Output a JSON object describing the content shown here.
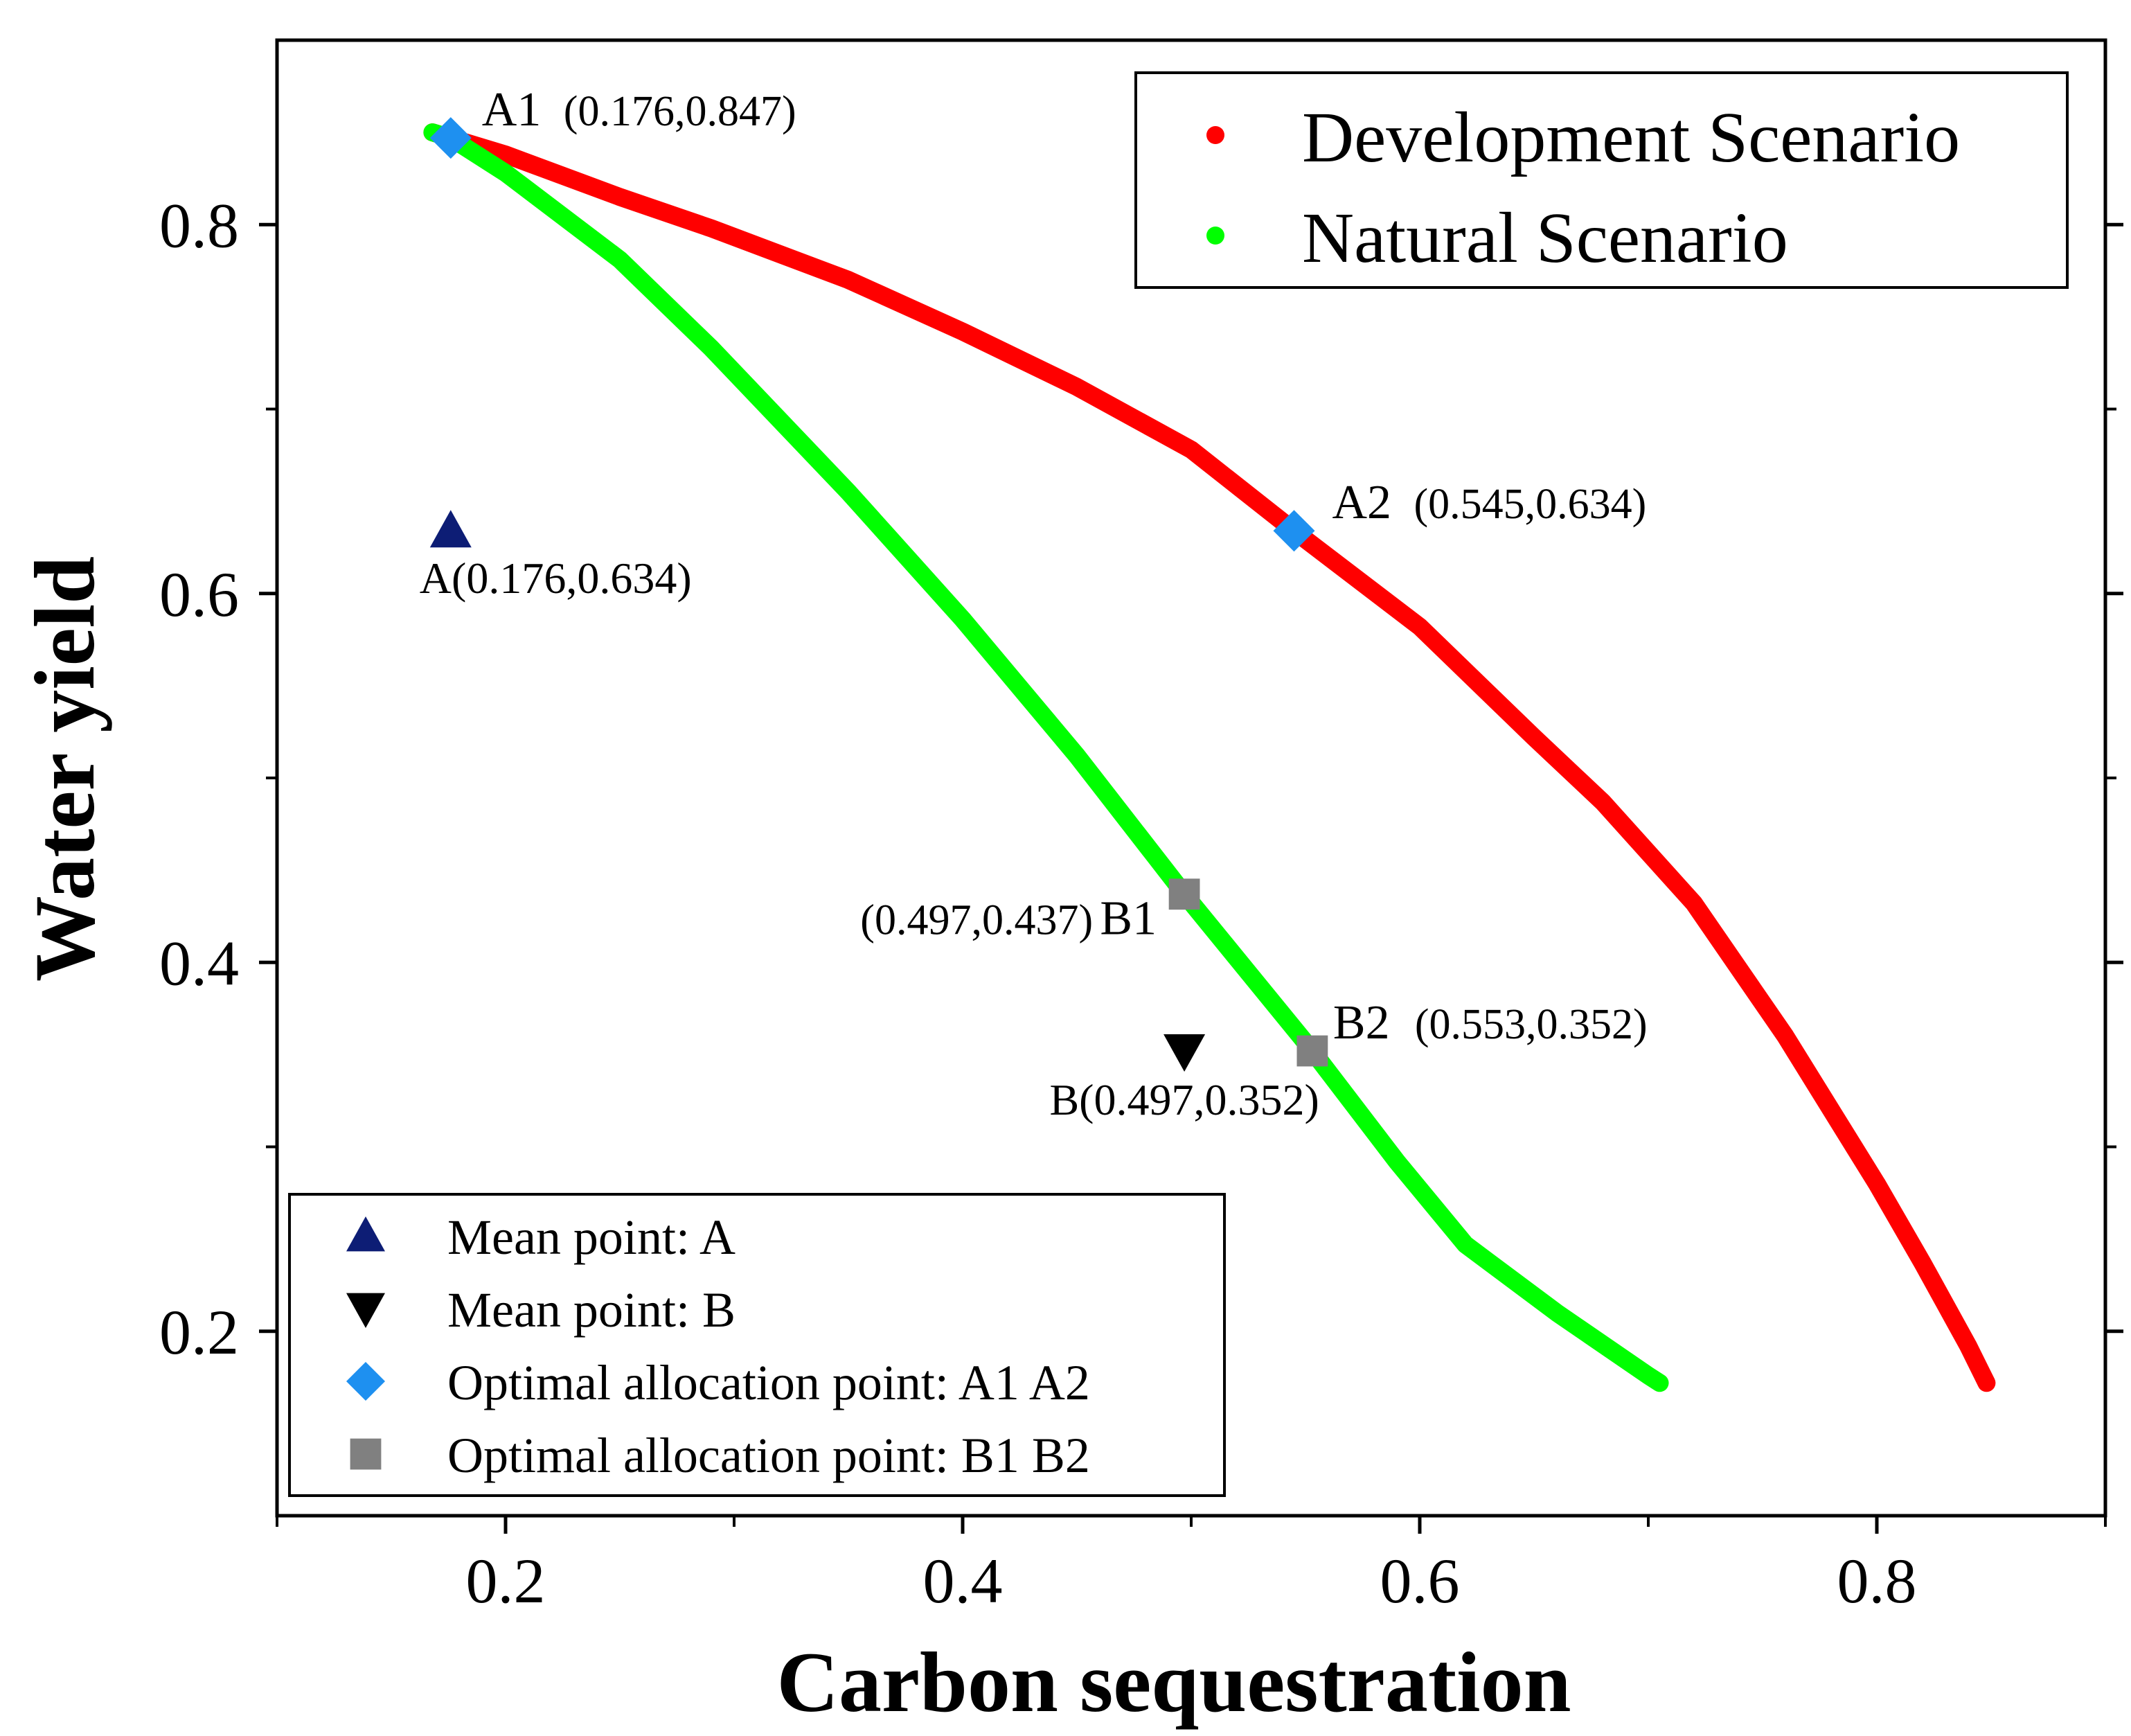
{
  "chart_data": {
    "type": "line",
    "title": "",
    "xlabel": "Carbon sequestration",
    "ylabel": "Water yield",
    "xlim": [
      0.1,
      0.9
    ],
    "ylim": [
      0.1,
      0.9
    ],
    "xticks": [
      0.2,
      0.4,
      0.6,
      0.8
    ],
    "yticks": [
      0.2,
      0.4,
      0.6,
      0.8
    ],
    "xtick_labels": [
      "0.2",
      "0.4",
      "0.6",
      "0.8"
    ],
    "ytick_labels": [
      "0.2",
      "0.4",
      "0.6",
      "0.8"
    ],
    "series": [
      {
        "name": "Development Scenario",
        "color": "#ff0000",
        "x": [
          0.168,
          0.176,
          0.2,
          0.25,
          0.29,
          0.35,
          0.4,
          0.45,
          0.5,
          0.545,
          0.6,
          0.65,
          0.68,
          0.72,
          0.76,
          0.8,
          0.82,
          0.84,
          0.846,
          0.848
        ],
        "y": [
          0.85,
          0.847,
          0.838,
          0.815,
          0.798,
          0.77,
          0.742,
          0.712,
          0.678,
          0.634,
          0.582,
          0.522,
          0.487,
          0.432,
          0.36,
          0.28,
          0.237,
          0.192,
          0.177,
          0.172
        ]
      },
      {
        "name": "Natural Scenario",
        "color": "#00ff00",
        "x": [
          0.168,
          0.176,
          0.2,
          0.25,
          0.29,
          0.35,
          0.4,
          0.45,
          0.497,
          0.553,
          0.59,
          0.62,
          0.66,
          0.7,
          0.705
        ],
        "y": [
          0.85,
          0.847,
          0.828,
          0.781,
          0.733,
          0.655,
          0.586,
          0.512,
          0.437,
          0.352,
          0.292,
          0.247,
          0.21,
          0.176,
          0.172
        ]
      }
    ],
    "points": [
      {
        "name": "Mean point: A",
        "label": "A(0.176,0.634)",
        "x": 0.176,
        "y": 0.634,
        "marker": "triangle-up",
        "color": "#0d1d75"
      },
      {
        "name": "Mean point: B",
        "label": "B(0.497,0.352)",
        "x": 0.497,
        "y": 0.352,
        "marker": "triangle-down",
        "color": "#000000"
      },
      {
        "name": "A1",
        "label_name": "A1",
        "label_coords": "(0.176,0.847)",
        "x": 0.176,
        "y": 0.847,
        "marker": "diamond",
        "color": "#1e90f0"
      },
      {
        "name": "A2",
        "label_name": "A2",
        "label_coords": "(0.545,0.634)",
        "x": 0.545,
        "y": 0.634,
        "marker": "diamond",
        "color": "#1e90f0"
      },
      {
        "name": "B1",
        "label_name": "B1",
        "label_coords": "(0.497,0.437)",
        "x": 0.497,
        "y": 0.437,
        "marker": "square",
        "color": "#808080"
      },
      {
        "name": "B2",
        "label_name": "B2",
        "label_coords": "(0.553,0.352)",
        "x": 0.553,
        "y": 0.352,
        "marker": "square",
        "color": "#808080"
      }
    ],
    "legend_top": {
      "position": "top-right",
      "entries": [
        {
          "label": "Development Scenario",
          "color": "#ff0000"
        },
        {
          "label": "Natural Scenario",
          "color": "#00ff00"
        }
      ]
    },
    "legend_bottom": {
      "position": "bottom-left",
      "entries": [
        {
          "label": "Mean point: A",
          "marker": "triangle-up",
          "color": "#0d1d75"
        },
        {
          "label": "Mean point: B",
          "marker": "triangle-down",
          "color": "#000000"
        },
        {
          "label": "Optimal allocation point: A1 A2",
          "marker": "diamond",
          "color": "#1e90f0"
        },
        {
          "label": "Optimal allocation point: B1 B2",
          "marker": "square",
          "color": "#808080"
        }
      ]
    }
  }
}
